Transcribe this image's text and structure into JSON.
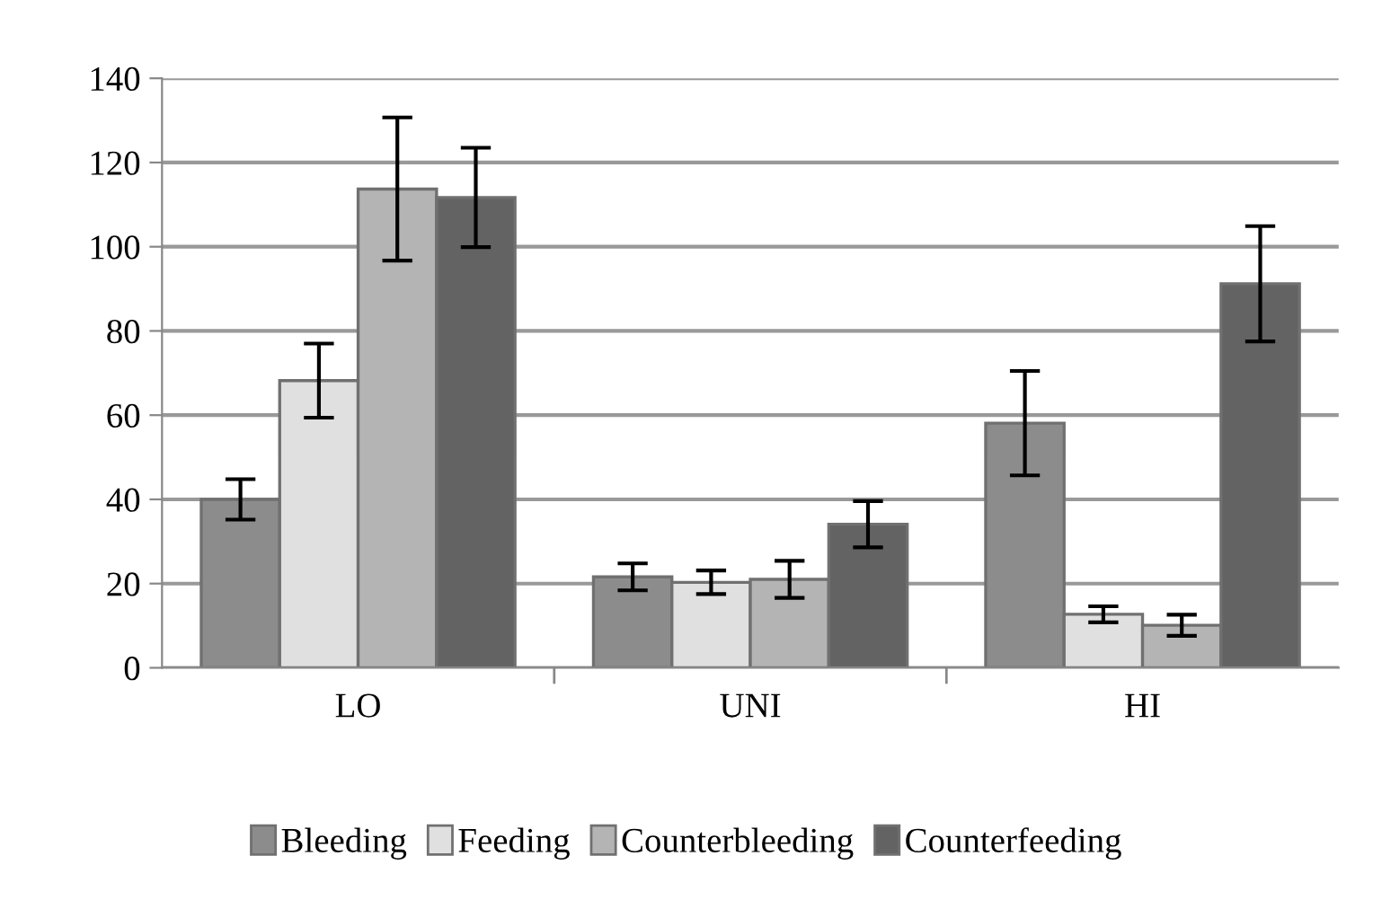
{
  "chart_data": {
    "type": "bar",
    "categories": [
      "LO",
      "UNI",
      "HI"
    ],
    "series": [
      {
        "name": "Bleeding",
        "color": "#8c8c8c",
        "values": [
          40,
          21.6,
          58.1
        ],
        "errors": [
          4.8,
          3.2,
          12.4
        ]
      },
      {
        "name": "Feeding",
        "color": "#e0e0e0",
        "values": [
          68.2,
          20.3,
          12.7
        ],
        "errors": [
          8.8,
          2.8,
          1.9
        ]
      },
      {
        "name": "Counterbleeding",
        "color": "#b4b4b4",
        "values": [
          113.7,
          21.0,
          10.1
        ],
        "errors": [
          17,
          4.4,
          2.5
        ]
      },
      {
        "name": "Counterfeeding",
        "color": "#636363",
        "values": [
          111.7,
          34.1,
          91.2
        ],
        "errors": [
          11.8,
          5.5,
          13.7
        ]
      }
    ],
    "ylim": [
      0,
      140
    ],
    "yticks": [
      0,
      20,
      40,
      60,
      80,
      100,
      120,
      140
    ],
    "grid": "y",
    "legend": "bottom"
  }
}
